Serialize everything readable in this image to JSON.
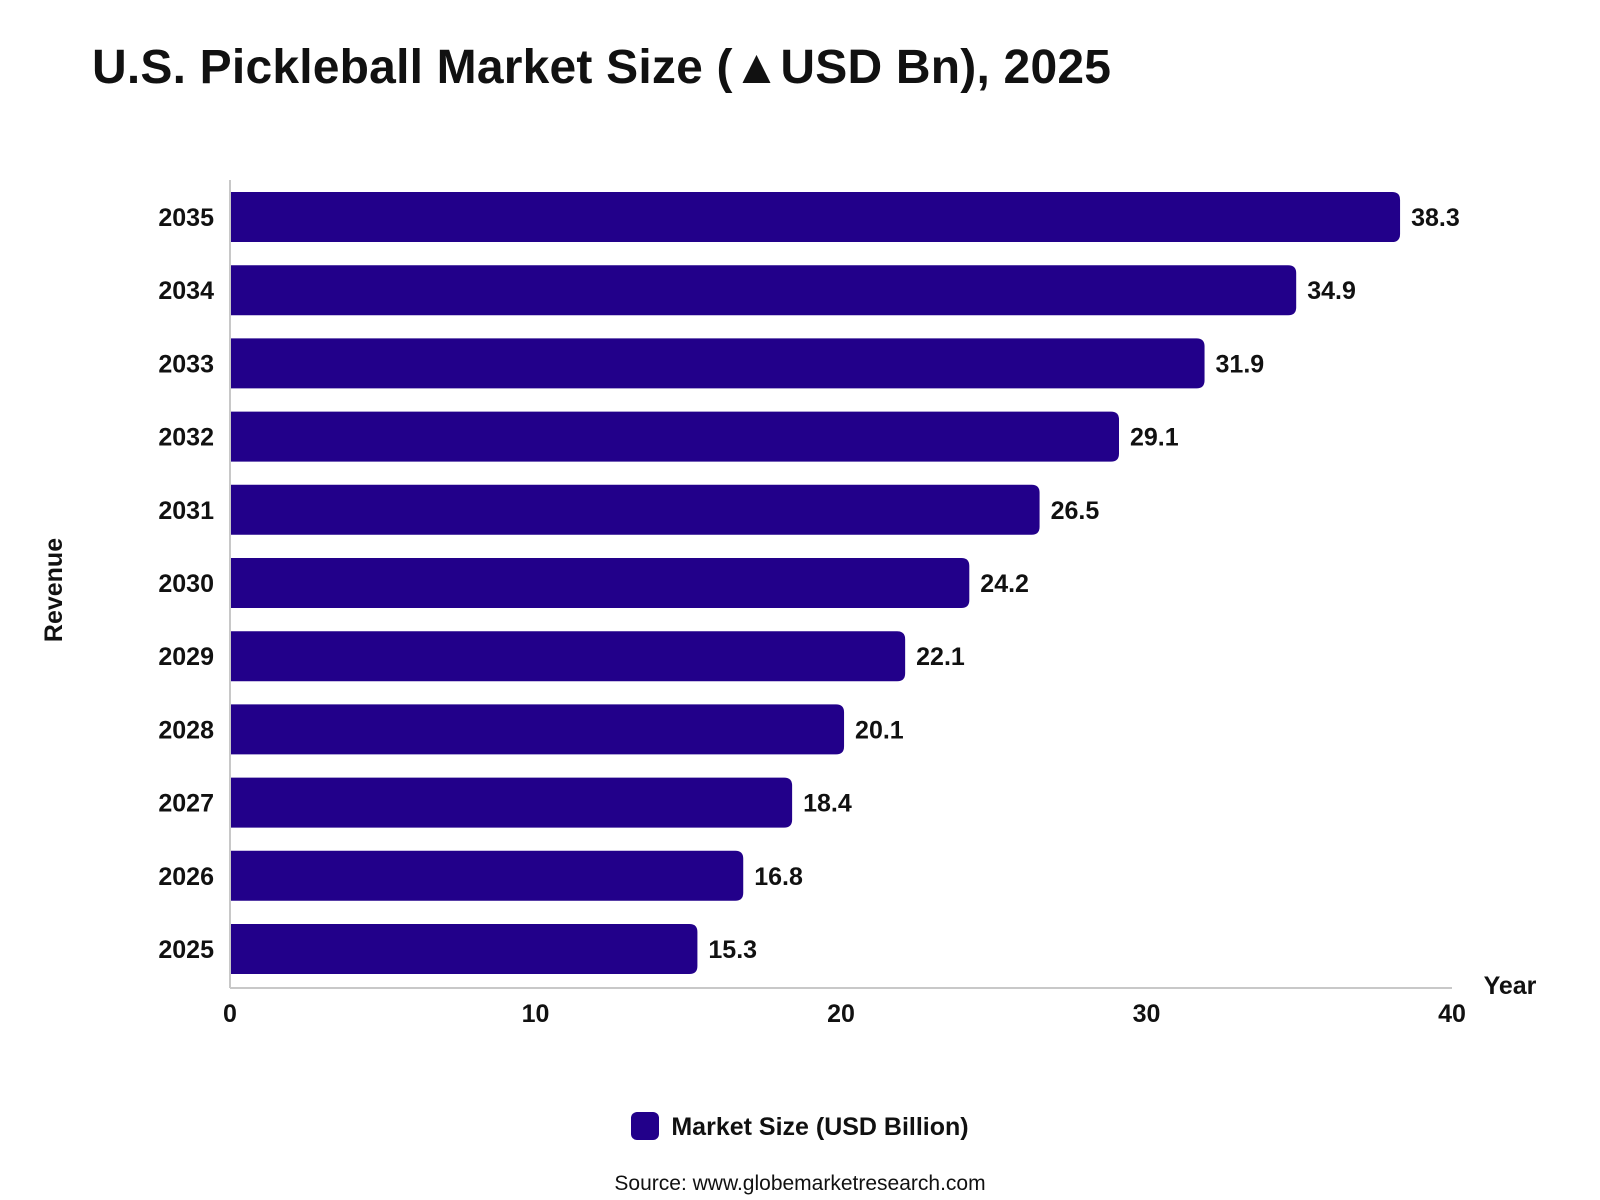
{
  "chart_data": {
    "type": "bar",
    "orientation": "horizontal",
    "title": "U.S. Pickleball Market Size (▲USD Bn), 2025",
    "categories": [
      "2025",
      "2026",
      "2027",
      "2028",
      "2029",
      "2030",
      "2031",
      "2032",
      "2033",
      "2034",
      "2035"
    ],
    "series": [
      {
        "name": "Market Size (USD Billion)",
        "values": [
          15.3,
          16.8,
          18.4,
          20.1,
          22.1,
          24.2,
          26.5,
          29.1,
          31.9,
          34.9,
          38.3
        ],
        "color": "#22008a"
      }
    ],
    "value_axis_label": "Year",
    "category_axis_label": "Revenue",
    "xlim": [
      0,
      40
    ],
    "xticks": [
      0,
      10,
      20,
      30,
      40
    ],
    "grid": false,
    "legend_position": "bottom-center",
    "source": "Source: www.globemarketresearch.com"
  }
}
